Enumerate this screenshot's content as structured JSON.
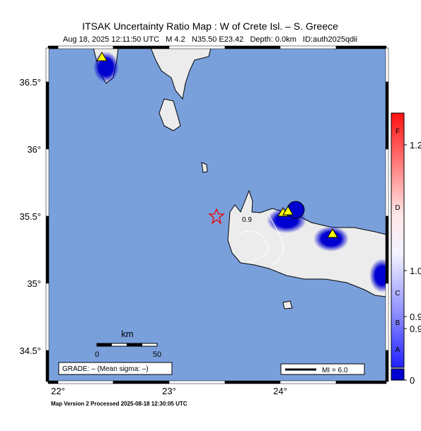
{
  "header": {
    "title": "ITSAK Uncertainty Ratio Map : W of Crete Isl. – S. Greece",
    "subtitle": "Aug 18, 2025 12:11:50 UTC   M 4.2   N35.50 E23.42   Depth: 0.0km   ID:auth2025qdii"
  },
  "map": {
    "lat_labels": [
      "36.5°",
      "36°",
      "35.5°",
      "35°",
      "34.5°"
    ],
    "lon_labels": [
      "22°",
      "23°",
      "24°"
    ],
    "contour_label": "0.9",
    "scale": {
      "unit": "km",
      "labels": [
        "0",
        "50"
      ]
    },
    "grade": "GRADE: – (Mean sigma: –)",
    "mi": "MI = 6.0"
  },
  "colorbar": {
    "letters": [
      "F",
      "D",
      "C",
      "B",
      "A"
    ],
    "values": [
      "1.2",
      "1.0",
      "0.9",
      "0.9",
      "0"
    ]
  },
  "footer": "Map Version 2 Processed 2025-08-18 12:30:05 UTC"
}
